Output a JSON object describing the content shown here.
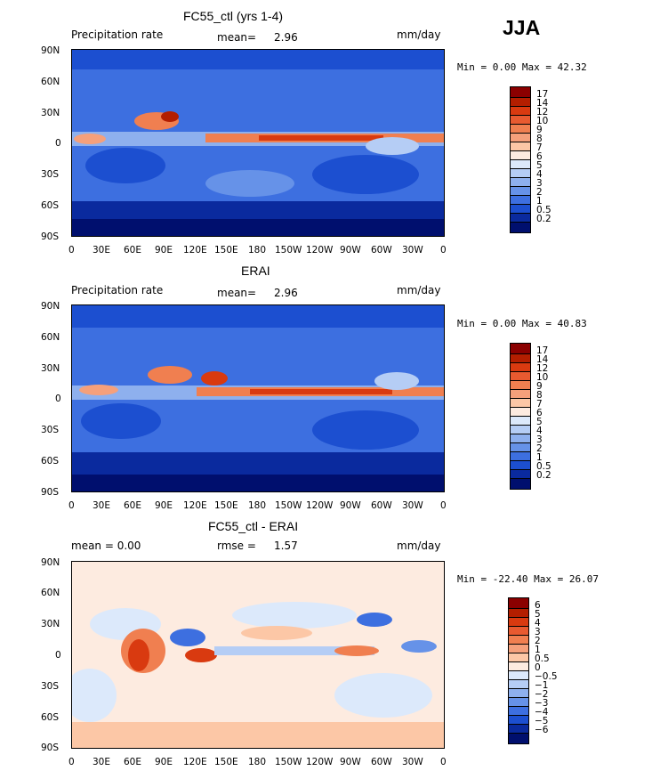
{
  "season": "JJA",
  "tick_labels": {
    "lat": [
      "90N",
      "60N",
      "30N",
      "0",
      "30S",
      "60S",
      "90S"
    ],
    "lon": [
      "0",
      "30E",
      "60E",
      "90E",
      "120E",
      "150E",
      "180",
      "150W",
      "120W",
      "90W",
      "60W",
      "30W",
      "0"
    ]
  },
  "panels": [
    {
      "title": "FC55_ctl (yrs 1-4)",
      "left_label": "Precipitation rate",
      "mean_label": "mean=",
      "mean_value": "2.96",
      "units": "mm/day",
      "minmax": "Min =   0.00 Max =  42.32",
      "colorbar_labels": [
        "17",
        "14",
        "12",
        "10",
        "9",
        "8",
        "7",
        "6",
        "5",
        "4",
        "3",
        "2",
        "1",
        "0.5",
        "0.2"
      ]
    },
    {
      "title": "ERAI",
      "left_label": "Precipitation rate",
      "mean_label": "mean=",
      "mean_value": "2.96",
      "units": "mm/day",
      "minmax": "Min =   0.00 Max =  40.83",
      "colorbar_labels": [
        "17",
        "14",
        "12",
        "10",
        "9",
        "8",
        "7",
        "6",
        "5",
        "4",
        "3",
        "2",
        "1",
        "0.5",
        "0.2"
      ]
    },
    {
      "title": "FC55_ctl - ERAI",
      "left_label": "mean =    0.00",
      "mean_label": "rmse =",
      "mean_value": "1.57",
      "units": "mm/day",
      "minmax": "Min = -22.40 Max =  26.07",
      "colorbar_labels": [
        "6",
        "5",
        "4",
        "3",
        "2",
        "1",
        "0.5",
        "0",
        "−0.5",
        "−1",
        "−2",
        "−3",
        "−4",
        "−5",
        "−6"
      ]
    }
  ],
  "colors": {
    "precip_scale": [
      "#8b0000",
      "#b31e00",
      "#d93a10",
      "#e85a30",
      "#f07f50",
      "#f5a07b",
      "#fcc7a6",
      "#fdebe0",
      "#dce9fb",
      "#b5cdf5",
      "#8eb0ee",
      "#6692e8",
      "#3d6fe0",
      "#1c4fd0",
      "#0a2a9e",
      "#000f6e"
    ],
    "diff_scale": [
      "#8b0000",
      "#b31e00",
      "#d93a10",
      "#e85a30",
      "#f07f50",
      "#f5a07b",
      "#fcc7a6",
      "#fdebe0",
      "#dce9fb",
      "#b5cdf5",
      "#8eb0ee",
      "#6692e8",
      "#3d6fe0",
      "#1c4fd0",
      "#0a2a9e",
      "#000f6e"
    ]
  }
}
